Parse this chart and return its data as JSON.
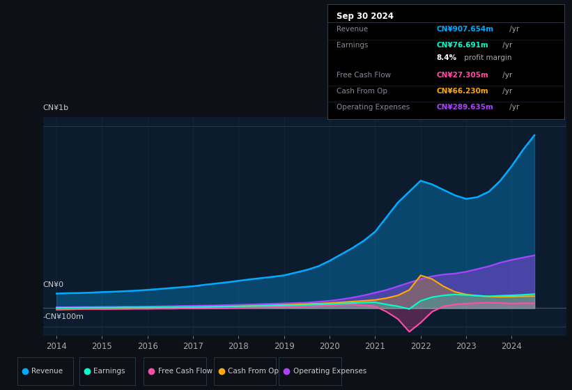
{
  "background_color": "#0d1117",
  "chart_bg": "#0d1b2e",
  "ylabel_top": "CN¥1b",
  "ylabel_zero": "CN¥0",
  "ylabel_neg": "-CN¥100m",
  "xlim": [
    2013.7,
    2025.2
  ],
  "ylim": [
    -150,
    1050
  ],
  "xticks": [
    2014,
    2015,
    2016,
    2017,
    2018,
    2019,
    2020,
    2021,
    2022,
    2023,
    2024
  ],
  "series": {
    "revenue": {
      "color": "#00aaff",
      "fill_alpha": 0.3,
      "label": "Revenue"
    },
    "earnings": {
      "color": "#00ffcc",
      "fill_alpha": 0.2,
      "label": "Earnings"
    },
    "fcf": {
      "color": "#ff4da6",
      "fill_alpha": 0.25,
      "label": "Free Cash Flow"
    },
    "cashfromop": {
      "color": "#ffaa00",
      "fill_alpha": 0.25,
      "label": "Cash From Op"
    },
    "opex": {
      "color": "#aa44ff",
      "fill_alpha": 0.35,
      "label": "Operating Expenses"
    }
  },
  "info_box": {
    "title": "Sep 30 2024",
    "rows": [
      {
        "label": "Revenue",
        "value": "CN¥907.654m",
        "suffix": " /yr",
        "value_color": "#00aaff"
      },
      {
        "label": "Earnings",
        "value": "CN¥76.691m",
        "suffix": " /yr",
        "value_color": "#00ffcc"
      },
      {
        "label": "",
        "value": "8.4%",
        "suffix": " profit margin",
        "value_color": "#ffffff"
      },
      {
        "label": "Free Cash Flow",
        "value": "CN¥27.305m",
        "suffix": " /yr",
        "value_color": "#ff4da6"
      },
      {
        "label": "Cash From Op",
        "value": "CN¥66.230m",
        "suffix": " /yr",
        "value_color": "#ffaa00"
      },
      {
        "label": "Operating Expenses",
        "value": "CN¥289.635m",
        "suffix": " /yr",
        "value_color": "#aa44ff"
      }
    ]
  },
  "legend": [
    {
      "label": "Revenue",
      "color": "#00aaff"
    },
    {
      "label": "Earnings",
      "color": "#00ffcc"
    },
    {
      "label": "Free Cash Flow",
      "color": "#ff4da6"
    },
    {
      "label": "Cash From Op",
      "color": "#ffaa00"
    },
    {
      "label": "Operating Expenses",
      "color": "#aa44ff"
    }
  ]
}
